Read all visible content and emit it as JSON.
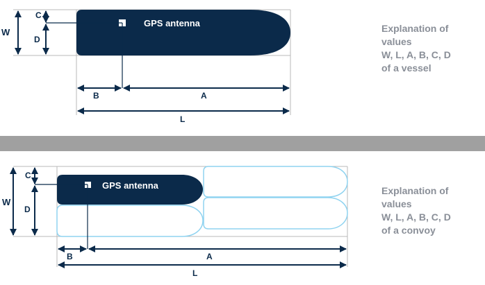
{
  "vessel": {
    "gps_label": "GPS antenna",
    "dims": {
      "w": "W",
      "l": "L",
      "a": "A",
      "b": "B",
      "c": "C",
      "d": "D"
    },
    "explanation": [
      "Explanation of",
      "values",
      "W, L, A, B, C, D",
      "of a vessel"
    ]
  },
  "convoy": {
    "gps_label": "GPS antenna",
    "dims": {
      "w": "W",
      "l": "L",
      "a": "A",
      "b": "B",
      "c": "C",
      "d": "D"
    },
    "explanation": [
      "Explanation of",
      "values",
      "W, L, A, B, C, D",
      "of a convoy"
    ]
  },
  "colors": {
    "hull": "#0b2a4a",
    "outline": "#8fd3f0",
    "divider": "#a0a0a0",
    "text_grey": "#8a8f98",
    "guide": "#b9b9b9"
  }
}
